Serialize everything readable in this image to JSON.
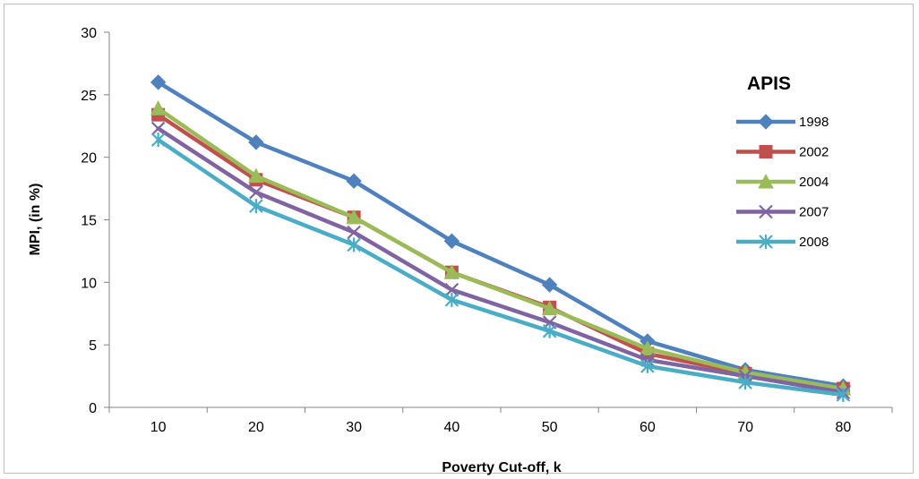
{
  "chart_data": {
    "type": "line",
    "title": "",
    "xlabel": "Poverty Cut-off, k",
    "ylabel": "MPI, (in %)",
    "categories": [
      "10",
      "20",
      "30",
      "40",
      "50",
      "60",
      "70",
      "80"
    ],
    "ylim": [
      0,
      30
    ],
    "yticks": [
      "0",
      "5",
      "10",
      "15",
      "20",
      "25",
      "30"
    ],
    "grid": false,
    "legend_title": "APIS",
    "legend_position": "right",
    "series": [
      {
        "name": "1998",
        "color": "#4f81bd",
        "marker": "diamond",
        "values": [
          26.0,
          21.2,
          18.1,
          13.3,
          9.8,
          5.3,
          3.0,
          1.7
        ]
      },
      {
        "name": "2002",
        "color": "#c0504d",
        "marker": "square",
        "values": [
          23.4,
          18.2,
          15.2,
          10.8,
          8.0,
          4.3,
          2.7,
          1.5
        ]
      },
      {
        "name": "2004",
        "color": "#9bbb59",
        "marker": "triangle",
        "values": [
          23.9,
          18.5,
          15.2,
          10.8,
          7.9,
          4.7,
          2.8,
          1.5
        ]
      },
      {
        "name": "2007",
        "color": "#8064a2",
        "marker": "x",
        "values": [
          22.3,
          17.2,
          14.0,
          9.4,
          6.8,
          3.8,
          2.5,
          1.2
        ]
      },
      {
        "name": "2008",
        "color": "#4bacc6",
        "marker": "star",
        "values": [
          21.4,
          16.1,
          13.0,
          8.6,
          6.1,
          3.3,
          2.0,
          1.0
        ]
      }
    ]
  }
}
